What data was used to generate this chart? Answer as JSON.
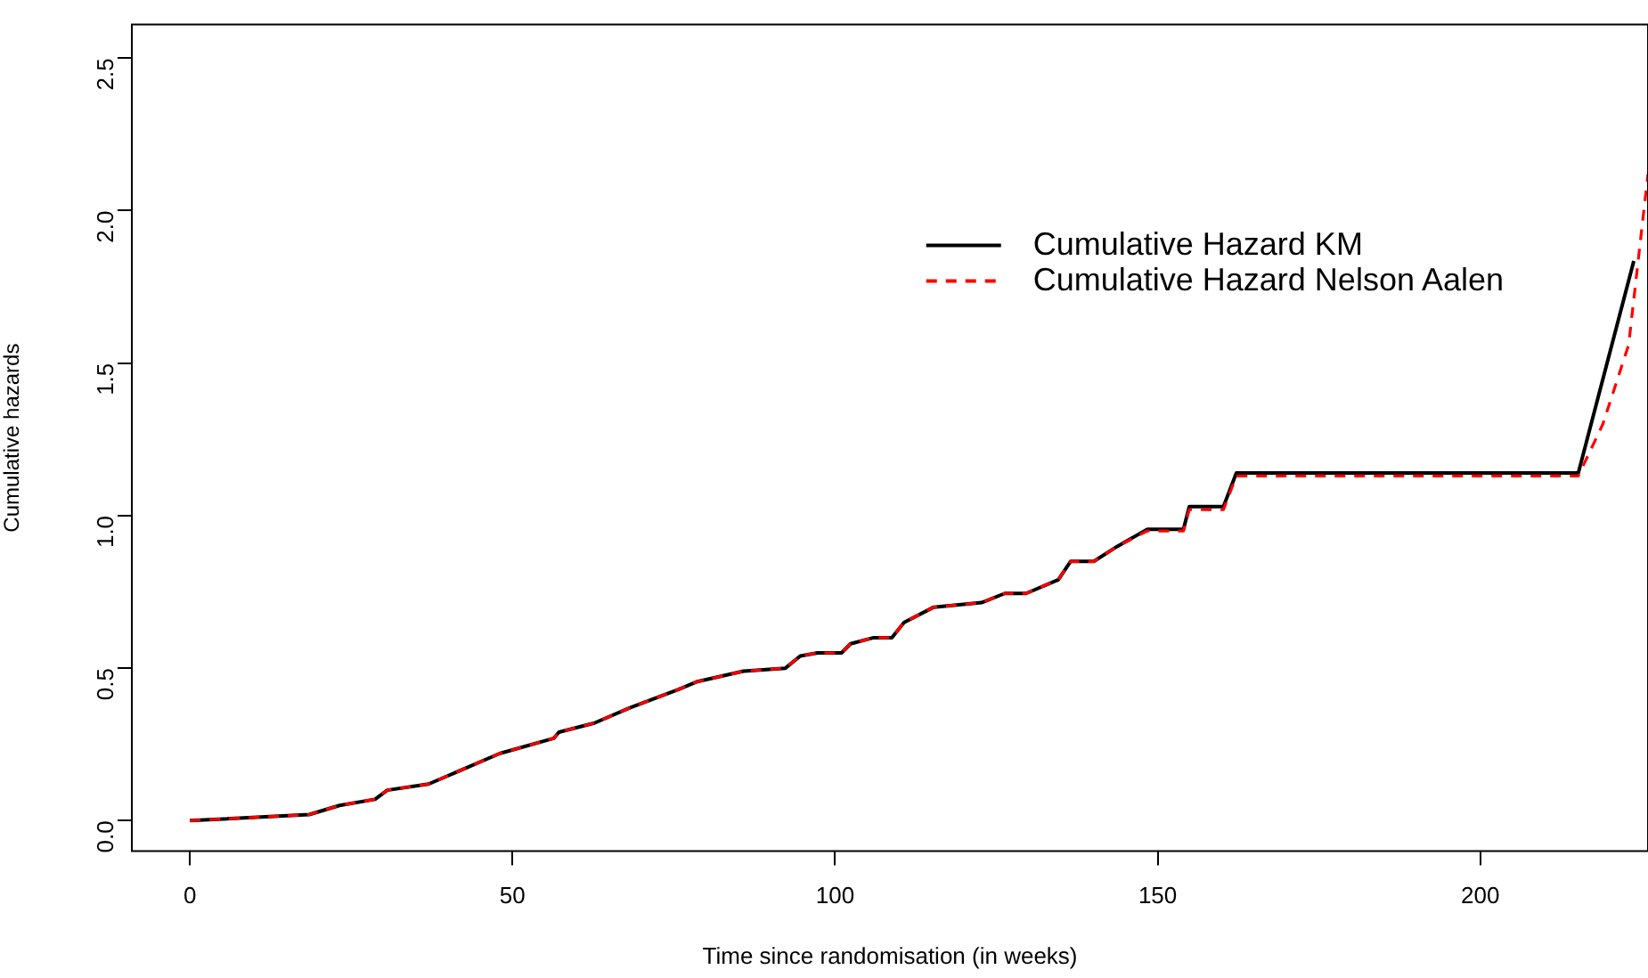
{
  "chart_data": {
    "type": "line",
    "xlabel": "Time since randomisation (in weeks)",
    "ylabel": "Cumulative hazards",
    "xlim": [
      -9,
      226
    ],
    "ylim": [
      -0.1,
      2.61
    ],
    "xticks": [
      0,
      50,
      100,
      150,
      200
    ],
    "yticks": [
      {
        "value": 0,
        "label": "0.0"
      },
      {
        "value": 0.5,
        "label": "0.5"
      },
      {
        "value": 1,
        "label": "1.0"
      },
      {
        "value": 1.5,
        "label": "1.5"
      },
      {
        "value": 2,
        "label": "2.0"
      },
      {
        "value": 2.5,
        "label": "2.5"
      }
    ],
    "grid": false,
    "legend": "top right",
    "marker": "none",
    "series": [
      {
        "name": "Cumulative Hazard KM",
        "color": "#000000",
        "line_style": "solid",
        "x": [
          0,
          18.5,
          23.2,
          28.7,
          30.6,
          37,
          48,
          56.4,
          57.2,
          62.7,
          68.2,
          75.7,
          78.5,
          85.8,
          92.3,
          94.6,
          97.3,
          101,
          102.4,
          106,
          108.8,
          110.7,
          115.3,
          122.7,
          126.3,
          129.6,
          134.6,
          136.5,
          140.1,
          143.8,
          148.4,
          154,
          154.9,
          160.2,
          162.2,
          215.2,
          223.8
        ],
        "values": [
          0,
          0.02,
          0.05,
          0.07,
          0.1,
          0.12,
          0.22,
          0.27,
          0.29,
          0.32,
          0.37,
          0.43,
          0.455,
          0.49,
          0.5,
          0.54,
          0.55,
          0.55,
          0.58,
          0.6,
          0.6,
          0.65,
          0.7,
          0.715,
          0.745,
          0.745,
          0.79,
          0.85,
          0.85,
          0.9,
          0.955,
          0.955,
          1.03,
          1.03,
          1.14,
          1.14,
          1.835
        ]
      },
      {
        "name": "Cumulative Hazard Nelson Aalen",
        "color": "#ff0000",
        "line_style": "dashed",
        "x": [
          0,
          18.5,
          23.2,
          28.7,
          30.6,
          37,
          48,
          56.4,
          57.2,
          62.7,
          68.2,
          75.7,
          78.5,
          85.8,
          92.3,
          94.6,
          97.3,
          101,
          102.4,
          106,
          108.8,
          110.7,
          115.3,
          122.7,
          126.3,
          129.6,
          134.6,
          136.5,
          140.1,
          143.8,
          148.4,
          154,
          154.9,
          160.2,
          162.2,
          215.2,
          219,
          223,
          226
        ],
        "values": [
          0,
          0.02,
          0.05,
          0.07,
          0.1,
          0.12,
          0.22,
          0.27,
          0.29,
          0.32,
          0.37,
          0.43,
          0.455,
          0.49,
          0.5,
          0.54,
          0.55,
          0.55,
          0.58,
          0.6,
          0.6,
          0.65,
          0.7,
          0.715,
          0.745,
          0.745,
          0.79,
          0.85,
          0.85,
          0.9,
          0.95,
          0.95,
          1.02,
          1.02,
          1.13,
          1.13,
          1.3,
          1.56,
          2.12
        ]
      }
    ]
  }
}
